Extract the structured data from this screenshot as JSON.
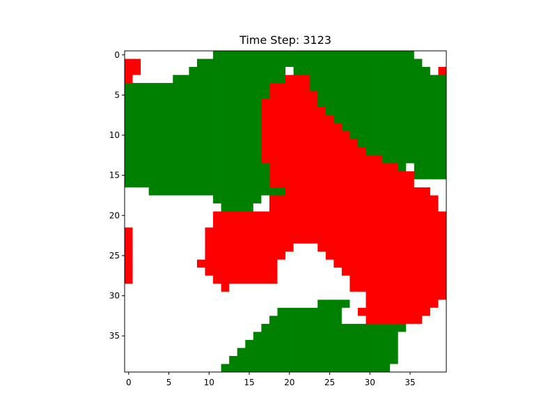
{
  "chart_data": {
    "type": "heatmap",
    "title": "Time Step: 3123",
    "xlabel": "",
    "ylabel": "",
    "xlim": [
      -0.5,
      39.5
    ],
    "ylim": [
      39.5,
      -0.5
    ],
    "x_ticks": [
      0,
      5,
      10,
      15,
      20,
      25,
      30,
      35
    ],
    "y_ticks": [
      0,
      5,
      10,
      15,
      20,
      25,
      30,
      35
    ],
    "grid": false,
    "legend": "none",
    "colors": {
      "empty": "#ffffff",
      "red": "#ff0000",
      "green": "#008000"
    },
    "cell_legend": {
      ".": "empty",
      "R": "red",
      "G": "green"
    },
    "grid_rows": [
      "...........GGGGGGGGGGGGGGGGGGGGGGGGG....",
      "RR.......GGGGGGGGGGGGGGGGGGGGGGGGGGGG...",
      "RR......GGGGGGGGGGGG.GGGGGGGGGGGGGGGGG.R",
      "R.....GGGGGGGGGGGGGGRRRGGGGGGGGGGGGGGGGG",
      "GGGGGGGGGGGGGGGGGGRRRRRGGGGGGGGGGGGGGGGG",
      "GGGGGGGGGGGGGGGGGGRRRRRRGGGGGGGGGGGGGGGG",
      "GGGGGGGGGGGGGGGGGRRRRRRRGGGGGGGGGGGGGGGG",
      "GGGGGGGGGGGGGGGGGRRRRRRRRGGGGGGGGGGGGGGG",
      "GGGGGGGGGGGGGGGGGRRRRRRRRRGGGGGGGGGGGGGG",
      "GGGGGGGGGGGGGGGGGRRRRRRRRRRGGGGGGGGGGGGG",
      "GGGGGGGGGGGGGGGGGRRRRRRRRRRRGGGGGGGGGGGG",
      "GGGGGGGGGGGGGGGGGRRRRRRRRRRRRGGGGGGGGGGG",
      "GGGGGGGGGGGGGGGGGRRRRRRRRRRRRRGGGGGGGGGG",
      "GGGGGGGGGGGGGGGGGRRRRRRRRRRRRRRRGGGGGGGG",
      "GGGGGGGGGGGGGGGGGGRRRRRRRRRRRRRRRRG.GGGG",
      "GGGGGGGGGGGGGGGGGGRRRRRRRRRRRRRRRRRRGGGG",
      "GGGGGGGGGGGGGGGGGGRRRRRRRRRRRRRRRRRR....",
      "...GGGGGGGGGGGGGGGGGRRRRRRRRRRRRRRRRRR..",
      "...........GGGGGG.RRRRRRRRRRRRRRRRRRRRR.",
      "............GGGG..RRRRRRRRRRRRRRRRRRRRR.",
      "...........RRRRRRRRRRRRRRRRRRRRRRRRRRRRR",
      "...........RRRRRRRRRRRRRRRRRRRRRRRRRRRRR",
      "R.........RRRRRRRRRRRRRRRRRRRRRRRRRRRRRR",
      "R.........RRRRRRRRRRRRRRRRRRRRRRRRRRRRRR",
      "R.........RRRRRRRRRRR...RRRRRRRRRRRRRRRR",
      "R.........RRRRRRRRRR.....RRRRRRRRRRRRRRR",
      "R........RRRRRRRRRR.......RRRRRRRRRRRRRR",
      "R.........RRRRRRRRR........RRRRRRRRRRRRR",
      "R..........RRRRRRRR.........RRRRRRRRRRRR",
      "............R...............RRRRRRRRRRRR",
      "..............................RRRRRRRRRR",
      "........................GGGG..RRRRRRRRR.",
      "...................GGGGGGGG..RRRRRRRRR..",
      "..................GGGGGGGGG...RRRRRRR...",
      ".................GGGGGGGGGGGGGGGGGG.....",
      "................GGGGGGGGGGGGGGGGGG......",
      "...............GGGGGGGGGGGGGGGGGGG......",
      "..............GGGGGGGGGGGGGGGGGGGG......",
      ".............GGGGGGGGGGGGGGGGGGGGG......",
      "............GGGGGGGGGGGGGGGGGGGGG......."
    ]
  }
}
